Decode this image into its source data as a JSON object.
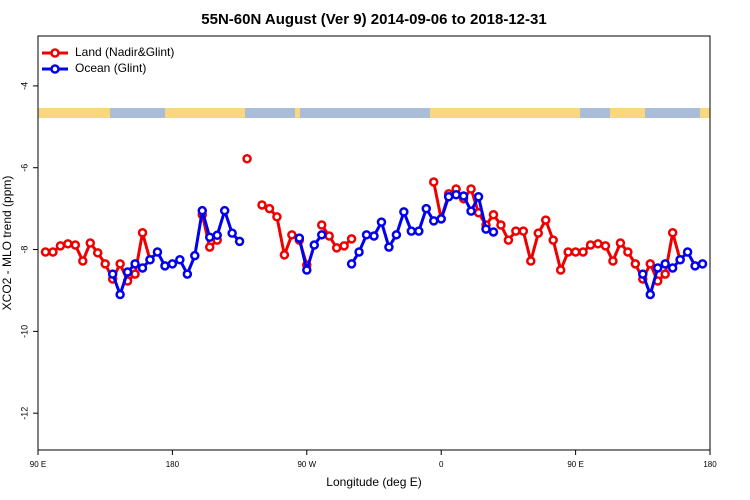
{
  "chart_data": {
    "type": "line",
    "title": "55N-60N August (Ver 9)   2014-09-06 to 2018-12-31",
    "xlabel": "Longitude (deg E)",
    "ylabel": "XCO2 - MLO trend (ppm)",
    "xlim": [
      90,
      540
    ],
    "ylim": [
      -12.9,
      -2.78
    ],
    "xticks": [
      {
        "value": 90,
        "label": "90 E"
      },
      {
        "value": 180,
        "label": "180"
      },
      {
        "value": 270,
        "label": "90 W"
      },
      {
        "value": 360,
        "label": "0"
      },
      {
        "value": 450,
        "label": "90 E"
      },
      {
        "value": 540,
        "label": "180"
      }
    ],
    "yticks": [
      -12,
      -10,
      -8,
      -6,
      -4
    ],
    "legend": "upper left",
    "x": [
      95,
      100,
      105,
      110,
      115,
      120,
      125,
      130,
      135,
      140,
      145,
      150,
      155,
      160,
      165,
      170,
      175,
      180,
      185,
      190,
      195,
      200,
      205,
      210,
      215,
      220,
      225,
      230,
      235,
      240,
      245,
      250,
      255,
      260,
      265,
      270,
      275,
      280,
      285,
      290,
      295,
      300,
      305,
      310,
      315,
      320,
      325,
      330,
      335,
      340,
      345,
      350,
      355,
      360,
      365,
      370,
      375,
      380,
      385,
      390,
      395,
      400,
      405,
      410,
      415,
      420,
      425,
      430,
      435,
      440,
      445,
      450,
      455,
      460,
      465,
      470,
      475,
      480,
      485,
      490,
      495,
      500,
      505,
      510,
      515,
      520,
      525,
      530,
      535
    ],
    "series": [
      {
        "name": "Land (Nadir&Glint)",
        "color": "#ee0000",
        "values": [
          -8.06,
          -8.06,
          -7.91,
          -7.86,
          -7.89,
          -8.28,
          -7.84,
          -8.08,
          -8.35,
          -8.72,
          -8.35,
          -8.77,
          -8.6,
          -7.59,
          -8.25,
          null,
          null,
          null,
          null,
          null,
          null,
          -7.15,
          -7.94,
          -7.77,
          null,
          null,
          null,
          -5.78,
          null,
          -6.91,
          -7.0,
          -7.2,
          -8.13,
          -7.64,
          -7.77,
          -8.38,
          null,
          -7.4,
          -7.67,
          -7.96,
          -7.91,
          -7.74,
          null,
          null,
          null,
          null,
          null,
          null,
          null,
          null,
          null,
          null,
          -6.35,
          -7.25,
          -6.64,
          -6.52,
          -6.76,
          -6.52,
          -7.1,
          -7.4,
          -7.15,
          -7.4,
          -7.77,
          -7.55,
          -7.55,
          -8.28,
          -7.6,
          -7.28,
          -7.77,
          -8.5,
          -8.06,
          -8.06,
          -8.06,
          -7.89,
          -7.86,
          -7.91,
          -8.28,
          -7.84,
          -8.06,
          -8.35,
          -8.72,
          -8.35,
          -8.77,
          -8.6,
          -7.59,
          -8.25,
          null,
          null,
          null
        ]
      },
      {
        "name": "Ocean (Glint)",
        "color": "#0000ee",
        "values": [
          null,
          null,
          null,
          null,
          null,
          null,
          null,
          null,
          null,
          -8.6,
          -9.1,
          -8.55,
          -8.35,
          -8.45,
          -8.25,
          -8.06,
          -8.4,
          -8.35,
          -8.25,
          -8.6,
          -8.15,
          -7.05,
          -7.7,
          -7.65,
          -7.05,
          -7.6,
          -7.8,
          null,
          null,
          null,
          null,
          null,
          null,
          null,
          -7.72,
          -8.5,
          -7.89,
          -7.64,
          null,
          null,
          null,
          -8.35,
          -8.06,
          -7.64,
          -7.67,
          -7.33,
          -7.94,
          -7.64,
          -7.08,
          -7.55,
          -7.55,
          -7.0,
          -7.3,
          -7.25,
          -6.71,
          -6.66,
          -6.69,
          -7.06,
          -6.71,
          -7.5,
          -7.57,
          null,
          null,
          null,
          null,
          null,
          null,
          null,
          null,
          null,
          null,
          null,
          null,
          null,
          null,
          null,
          null,
          null,
          null,
          null,
          -8.6,
          -9.1,
          -8.45,
          -8.35,
          -8.45,
          -8.25,
          -8.06,
          -8.4,
          -8.35
        ]
      }
    ]
  }
}
